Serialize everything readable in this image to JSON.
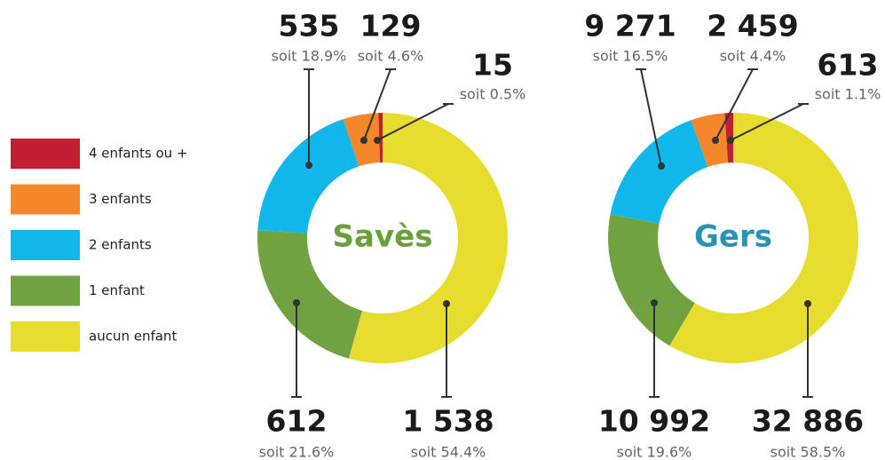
{
  "chart_data": [
    {
      "type": "donut",
      "title": "Savès",
      "title_color": "#6a9f3a",
      "categories": [
        "aucun enfant",
        "1 enfant",
        "2 enfants",
        "3 enfants",
        "4 enfants ou +"
      ],
      "colors": [
        "#e6dd2f",
        "#70a340",
        "#11b6ea",
        "#f3872a",
        "#c21f32"
      ],
      "values": [
        1538,
        612,
        535,
        129,
        15
      ],
      "value_labels": [
        "1 538",
        "612",
        "535",
        "129",
        "15"
      ],
      "share_labels": [
        "soit 54.4%",
        "soit 21.6%",
        "soit 18.9%",
        "soit 4.6%",
        "soit 0.5%"
      ]
    },
    {
      "type": "donut",
      "title": "Gers",
      "title_color": "#2a93b5",
      "categories": [
        "aucun enfant",
        "1 enfant",
        "2 enfants",
        "3 enfants",
        "4 enfants ou +"
      ],
      "colors": [
        "#e6dd2f",
        "#70a340",
        "#11b6ea",
        "#f3872a",
        "#c21f32"
      ],
      "values": [
        32886,
        10992,
        9271,
        2459,
        613
      ],
      "value_labels": [
        "32 886",
        "10 992",
        "9 271",
        "2 459",
        "613"
      ],
      "share_labels": [
        "soit 58.5%",
        "soit 19.6%",
        "soit 16.5%",
        "soit 4.4%",
        "soit 1.1%"
      ]
    }
  ]
}
